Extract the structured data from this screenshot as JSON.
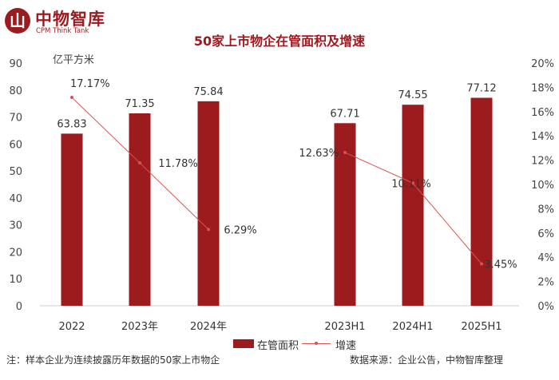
{
  "logo": {
    "cn": "中物智库",
    "en": "CPM Think Tank",
    "badge": "山"
  },
  "chart_data": {
    "type": "bar",
    "title": "50家上市物企在管面积及增速",
    "ylabel": "亿平方米",
    "categories": [
      "2022",
      "2023年",
      "2024年",
      "2023H1",
      "2024H1",
      "2025H1"
    ],
    "ylim": [
      0,
      90
    ],
    "y2lim": [
      0,
      20
    ],
    "yticks": [
      "0",
      "10",
      "20",
      "30",
      "40",
      "50",
      "60",
      "70",
      "80",
      "90"
    ],
    "y2ticks": [
      "0%",
      "2%",
      "4%",
      "6%",
      "8%",
      "10%",
      "12%",
      "14%",
      "16%",
      "18%",
      "20%"
    ],
    "series": [
      {
        "name": "在管面积",
        "type": "bar",
        "color": "#9b1b1f",
        "values": [
          63.83,
          71.35,
          75.84,
          67.71,
          74.55,
          77.12
        ],
        "labels": [
          "63.83",
          "71.35",
          "75.84",
          "67.71",
          "74.55",
          "77.12"
        ]
      },
      {
        "name": "增速",
        "type": "line",
        "color": "#d9534f",
        "axis": "right",
        "segments": [
          [
            0,
            1,
            2
          ],
          [
            3,
            4,
            5
          ]
        ],
        "values": [
          17.17,
          11.78,
          6.29,
          12.63,
          10.11,
          3.45
        ],
        "labels": [
          "17.17%",
          "11.78%",
          "6.29%",
          "12.63%",
          "10.11%",
          "3.45%"
        ]
      }
    ],
    "legend": "bottom",
    "grid": false
  },
  "footnote": "注：样本企业为连续披露历年数据的50家上市物企",
  "source": "数据来源：企业公告，中物智库整理"
}
